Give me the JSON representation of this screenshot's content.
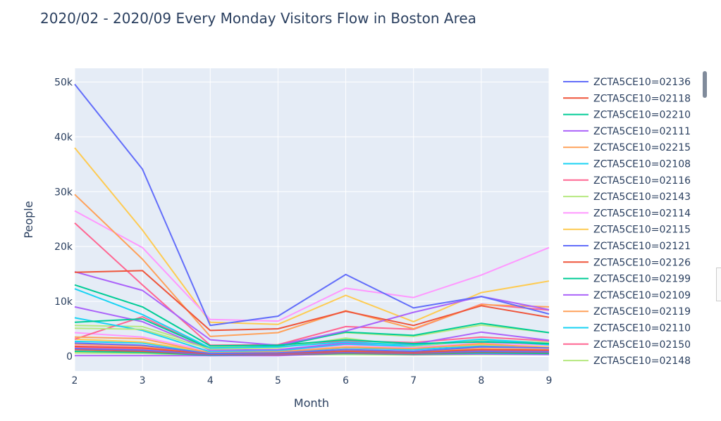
{
  "chart_data": {
    "type": "line",
    "title": "2020/02 - 2020/09 Every Monday Visitors Flow in Boston Area",
    "xlabel": "Month",
    "ylabel": "People",
    "x": [
      2,
      3,
      4,
      5,
      6,
      7,
      8,
      9
    ],
    "xlim": [
      2,
      9
    ],
    "ylim": [
      -2700,
      52500
    ],
    "x_ticks": [
      "2",
      "3",
      "4",
      "5",
      "6",
      "7",
      "8",
      "9"
    ],
    "y_ticks": [
      {
        "value": 0,
        "label": "0"
      },
      {
        "value": 10000,
        "label": "10k"
      },
      {
        "value": 20000,
        "label": "20k"
      },
      {
        "value": 30000,
        "label": "30k"
      },
      {
        "value": 40000,
        "label": "40k"
      },
      {
        "value": 50000,
        "label": "50k"
      }
    ],
    "grid": true,
    "legend_position": "right",
    "plot_background": "#e5ecf6",
    "series": [
      {
        "name": "ZCTA5CE10=02136",
        "color": "#636efa",
        "values": [
          49600,
          34100,
          5600,
          7300,
          14900,
          8800,
          10900,
          7700
        ]
      },
      {
        "name": "ZCTA5CE10=02118",
        "color": "#ef553b",
        "values": [
          15300,
          15600,
          4700,
          5000,
          8200,
          5600,
          9200,
          7100
        ]
      },
      {
        "name": "ZCTA5CE10=02210",
        "color": "#00cc96",
        "values": [
          13000,
          9000,
          1900,
          2000,
          3000,
          2300,
          2600,
          2300
        ]
      },
      {
        "name": "ZCTA5CE10=02111",
        "color": "#ab63fa",
        "values": [
          15400,
          12000,
          3000,
          2000,
          4600,
          8000,
          10900,
          8500
        ]
      },
      {
        "name": "ZCTA5CE10=02215",
        "color": "#ffa15a",
        "values": [
          29500,
          17700,
          3600,
          4300,
          8300,
          5000,
          9400,
          9000
        ]
      },
      {
        "name": "ZCTA5CE10=02108",
        "color": "#19d3f3",
        "values": [
          12300,
          7600,
          1500,
          1700,
          2600,
          2000,
          3100,
          2300
        ]
      },
      {
        "name": "ZCTA5CE10=02116",
        "color": "#ff6692",
        "values": [
          24300,
          13000,
          2000,
          2100,
          5400,
          4900,
          9500,
          8400
        ]
      },
      {
        "name": "ZCTA5CE10=02143",
        "color": "#b6e880",
        "values": [
          5100,
          4900,
          1300,
          1500,
          3300,
          1800,
          3000,
          2500
        ]
      },
      {
        "name": "ZCTA5CE10=02114",
        "color": "#ff97ff",
        "values": [
          26500,
          19800,
          6700,
          6400,
          12400,
          10700,
          14800,
          19800
        ]
      },
      {
        "name": "ZCTA5CE10=02115",
        "color": "#fecb52",
        "values": [
          38000,
          23000,
          6200,
          5800,
          11100,
          6300,
          11600,
          13700
        ]
      },
      {
        "name": "ZCTA5CE10=02121",
        "color": "#636efa",
        "values": [
          2400,
          2000,
          500,
          600,
          1200,
          900,
          1700,
          1500
        ]
      },
      {
        "name": "ZCTA5CE10=02126",
        "color": "#ef553b",
        "values": [
          1800,
          1500,
          400,
          500,
          900,
          700,
          1200,
          1100
        ]
      },
      {
        "name": "ZCTA5CE10=02199",
        "color": "#00cc96",
        "values": [
          6200,
          6800,
          1400,
          1800,
          4400,
          3800,
          6000,
          4300
        ]
      },
      {
        "name": "ZCTA5CE10=02109",
        "color": "#ab63fa",
        "values": [
          9000,
          6300,
          1100,
          1200,
          2400,
          2200,
          4400,
          2900
        ]
      },
      {
        "name": "ZCTA5CE10=02119",
        "color": "#ffa15a",
        "values": [
          3500,
          3200,
          600,
          800,
          1600,
          1400,
          2300,
          1500
        ]
      },
      {
        "name": "ZCTA5CE10=02110",
        "color": "#19d3f3",
        "values": [
          7000,
          4700,
          800,
          1000,
          2200,
          1800,
          2900,
          2100
        ]
      },
      {
        "name": "ZCTA5CE10=02150",
        "color": "#ff6692",
        "values": [
          3100,
          7200,
          1300,
          1700,
          2800,
          2500,
          3500,
          2800
        ]
      },
      {
        "name": "ZCTA5CE10=02148",
        "color": "#b6e880",
        "values": [
          5600,
          5400,
          1600,
          2100,
          4300,
          3600,
          5700,
          4300
        ]
      },
      {
        "name": "",
        "color": "#ff97ff",
        "values": [
          4300,
          3500,
          900,
          1000,
          2000,
          1600,
          2400,
          2000
        ]
      },
      {
        "name": "",
        "color": "#fecb52",
        "values": [
          3100,
          2600,
          700,
          900,
          1700,
          1500,
          2100,
          1700
        ]
      },
      {
        "name": "",
        "color": "#636efa",
        "values": [
          1400,
          1100,
          300,
          400,
          700,
          600,
          900,
          800
        ]
      },
      {
        "name": "",
        "color": "#ef553b",
        "values": [
          1200,
          900,
          300,
          300,
          600,
          500,
          800,
          700
        ]
      },
      {
        "name": "",
        "color": "#00cc96",
        "values": [
          900,
          700,
          200,
          300,
          500,
          400,
          600,
          500
        ]
      },
      {
        "name": "",
        "color": "#ab63fa",
        "values": [
          100,
          100,
          100,
          100,
          500,
          300,
          400,
          300
        ]
      },
      {
        "name": "",
        "color": "#ffa15a",
        "values": [
          2200,
          1800,
          400,
          500,
          1100,
          900,
          1400,
          1200
        ]
      },
      {
        "name": "",
        "color": "#19d3f3",
        "values": [
          2700,
          2400,
          500,
          700,
          1500,
          1200,
          1900,
          1600
        ]
      },
      {
        "name": "",
        "color": "#ff6692",
        "values": [
          1600,
          1300,
          300,
          400,
          800,
          700,
          1100,
          900
        ]
      },
      {
        "name": "",
        "color": "#b6e880",
        "values": [
          600,
          500,
          100,
          200,
          300,
          200,
          300,
          300
        ]
      },
      {
        "name": "",
        "color": "#ff97ff",
        "values": [
          1900,
          1600,
          500,
          600,
          1000,
          900,
          1300,
          1100
        ]
      },
      {
        "name": "",
        "color": "#fecb52",
        "values": [
          800,
          700,
          200,
          200,
          400,
          300,
          500,
          400
        ]
      }
    ]
  }
}
